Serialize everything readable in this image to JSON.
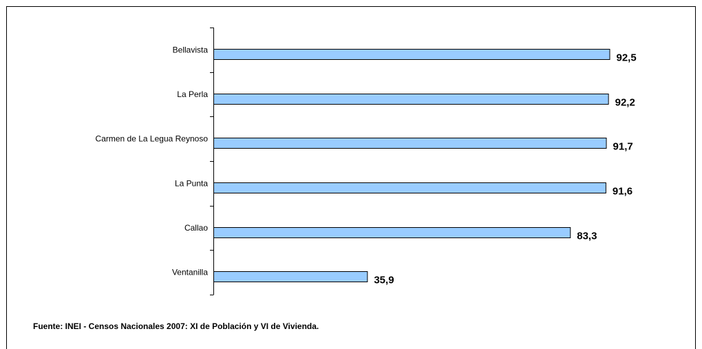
{
  "chart_data": {
    "type": "bar",
    "orientation": "horizontal",
    "categories": [
      "Bellavista",
      "La Perla",
      "Carmen de La Legua Reynoso",
      "La Punta",
      "Callao",
      "Ventanilla"
    ],
    "values": [
      92.5,
      92.2,
      91.7,
      91.6,
      83.3,
      35.9
    ],
    "value_labels": [
      "92,5",
      "92,2",
      "91,7",
      "91,6",
      "83,3",
      "35,9"
    ],
    "xlim": [
      0,
      100
    ],
    "grid": false,
    "legend": false,
    "colors": {
      "bar_fill": "#99ccff",
      "bar_stroke": "#000000",
      "axis": "#000000"
    }
  },
  "footer": {
    "source": "Fuente: INEI - Censos Nacionales 2007: XI de Población y VI de Vivienda."
  }
}
